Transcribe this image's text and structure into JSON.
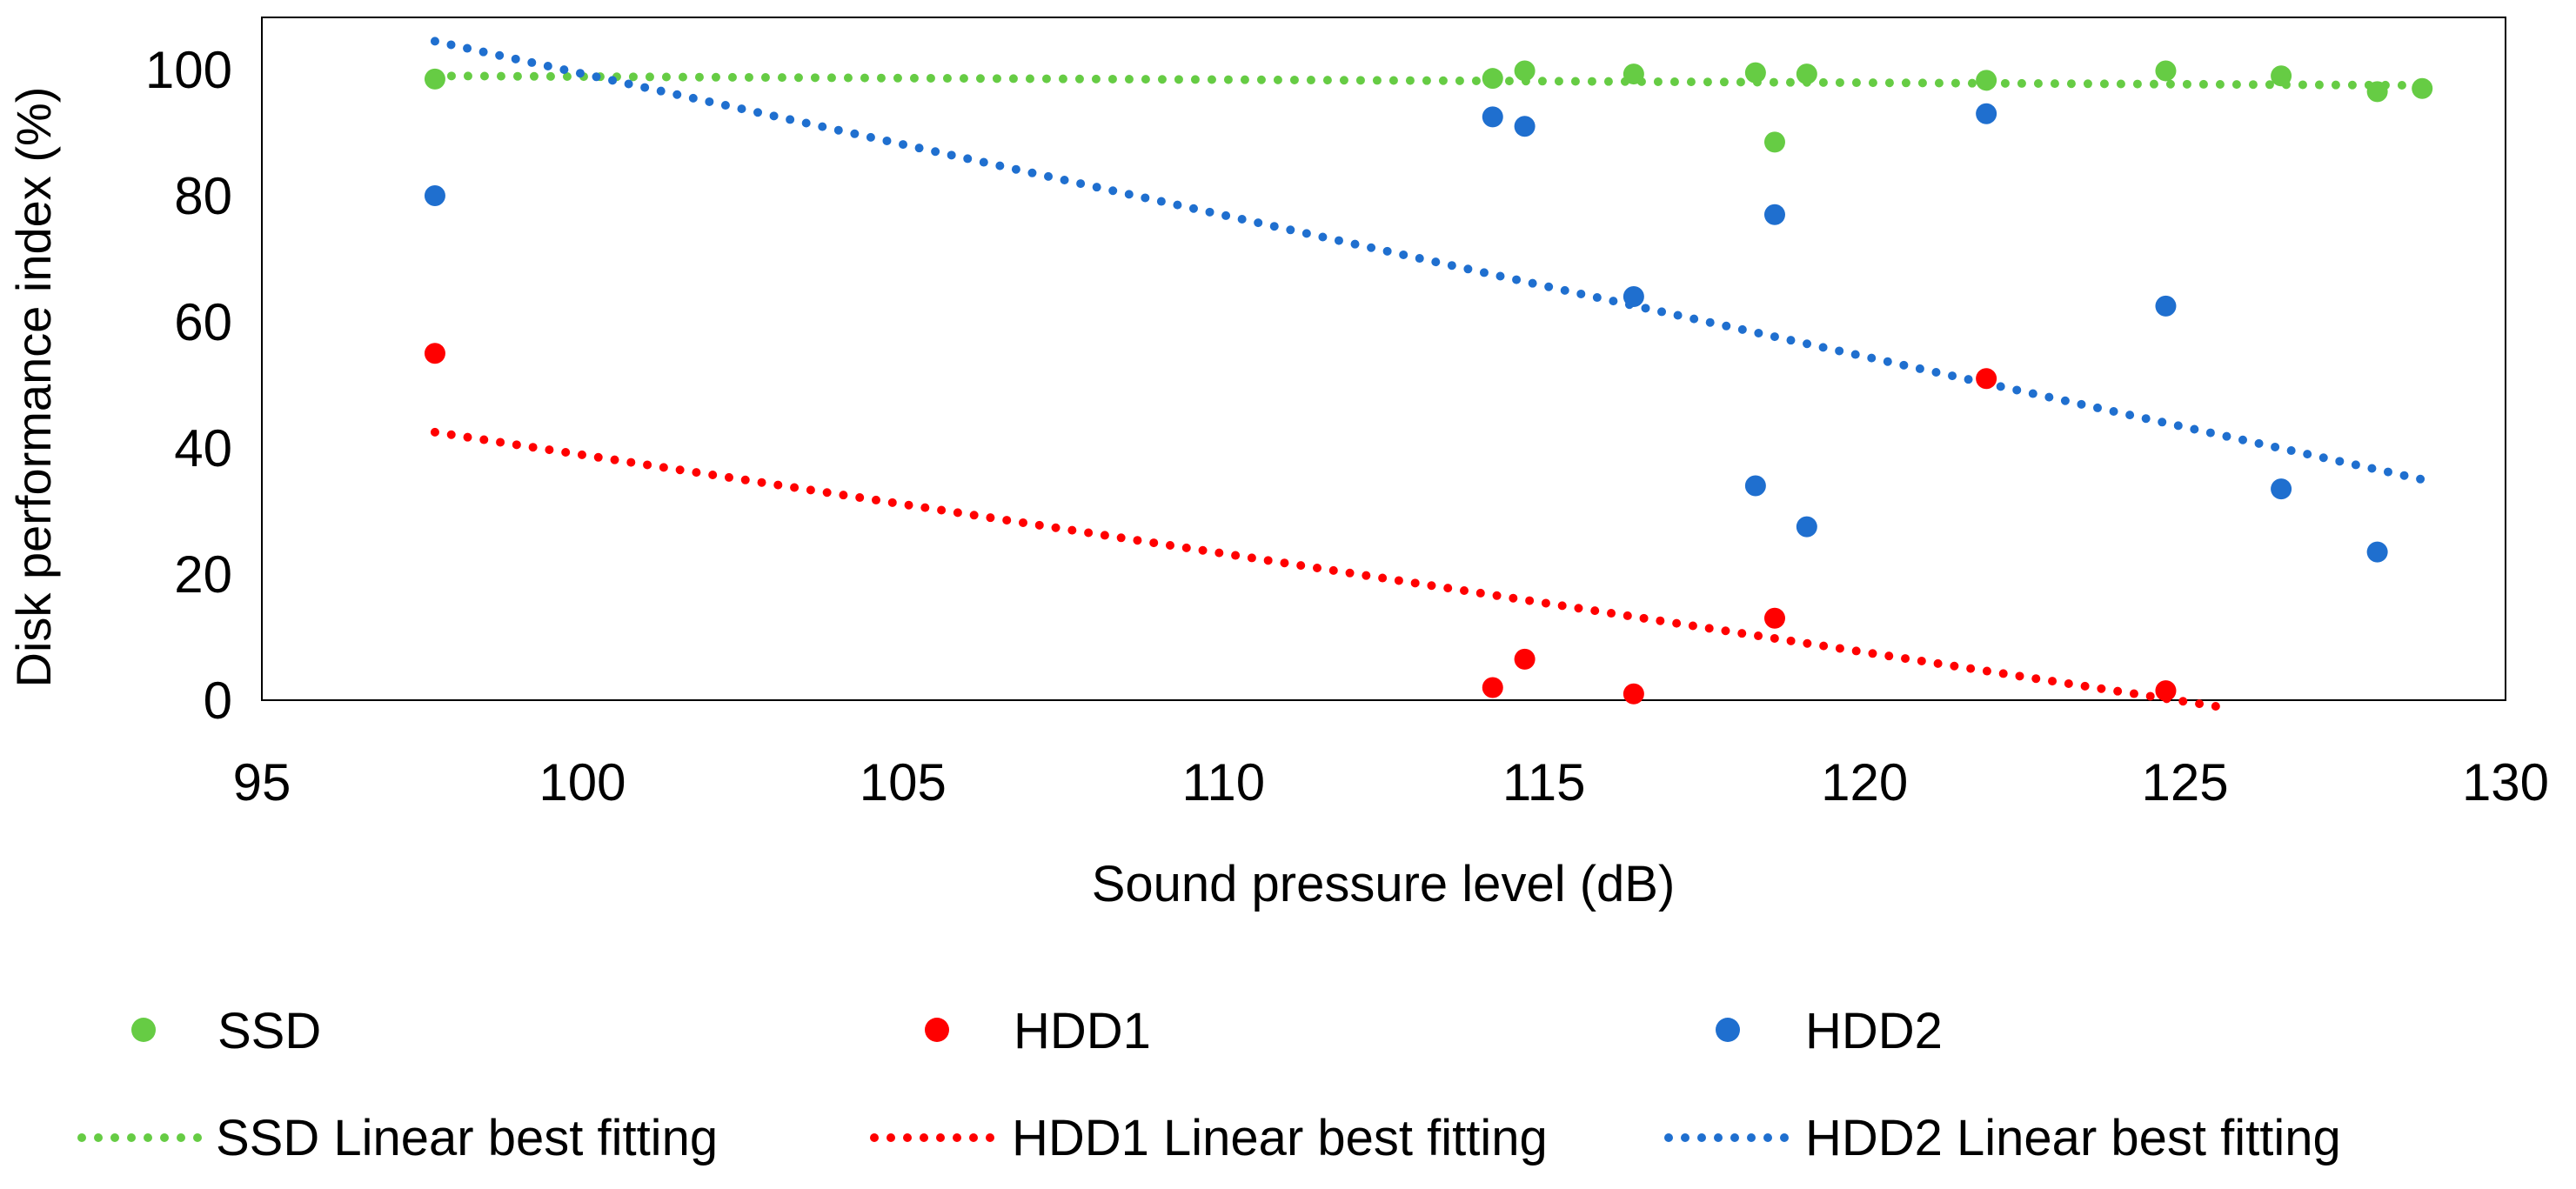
{
  "chart_data": {
    "type": "scatter",
    "title": "",
    "xlabel": "Sound pressure level (dB)",
    "ylabel": "Disk performance index (%)",
    "xlim": [
      95,
      130
    ],
    "ylim": [
      0,
      110
    ],
    "x_ticks": [
      95,
      100,
      105,
      110,
      115,
      120,
      125,
      130
    ],
    "y_ticks": [
      0,
      20,
      40,
      60,
      80,
      100
    ],
    "grid": false,
    "legend_position": "bottom",
    "series": [
      {
        "name": "SSD",
        "color": "#66cc44",
        "points": [
          {
            "x": 97.7,
            "y": 98.5
          },
          {
            "x": 114.2,
            "y": 98.6
          },
          {
            "x": 114.7,
            "y": 99.8
          },
          {
            "x": 116.4,
            "y": 99.3
          },
          {
            "x": 118.3,
            "y": 99.5
          },
          {
            "x": 118.6,
            "y": 88.5
          },
          {
            "x": 119.1,
            "y": 99.3
          },
          {
            "x": 121.9,
            "y": 98.3
          },
          {
            "x": 124.7,
            "y": 99.8
          },
          {
            "x": 126.5,
            "y": 99.0
          },
          {
            "x": 128.0,
            "y": 96.5
          },
          {
            "x": 128.7,
            "y": 97.0
          }
        ]
      },
      {
        "name": "HDD1",
        "color": "#ff0000",
        "points": [
          {
            "x": 97.7,
            "y": 55.0
          },
          {
            "x": 114.2,
            "y": 2.0
          },
          {
            "x": 114.7,
            "y": 6.5
          },
          {
            "x": 116.4,
            "y": 1.0
          },
          {
            "x": 118.6,
            "y": 13.0
          },
          {
            "x": 121.9,
            "y": 51.0
          },
          {
            "x": 124.7,
            "y": 1.5
          }
        ]
      },
      {
        "name": "HDD2",
        "color": "#1f6fcf",
        "points": [
          {
            "x": 97.7,
            "y": 80.0
          },
          {
            "x": 114.2,
            "y": 92.5
          },
          {
            "x": 114.7,
            "y": 91.0
          },
          {
            "x": 116.4,
            "y": 64.0
          },
          {
            "x": 118.3,
            "y": 34.0
          },
          {
            "x": 118.6,
            "y": 77.0
          },
          {
            "x": 119.1,
            "y": 27.5
          },
          {
            "x": 121.9,
            "y": 93.0
          },
          {
            "x": 124.7,
            "y": 62.5
          },
          {
            "x": 126.5,
            "y": 33.5
          },
          {
            "x": 128.0,
            "y": 23.5
          }
        ]
      }
    ],
    "trendlines": [
      {
        "name": "SSD Linear best fitting",
        "color": "#66cc44",
        "x1": 97.7,
        "y1": 99.0,
        "x2": 128.7,
        "y2": 97.5
      },
      {
        "name": "HDD1 Linear best fitting",
        "color": "#ff0000",
        "x1": 97.7,
        "y1": 42.5,
        "x2": 125.5,
        "y2": -1.0
      },
      {
        "name": "HDD2 Linear best fitting",
        "color": "#1f6fcf",
        "x1": 97.7,
        "y1": 104.5,
        "x2": 128.7,
        "y2": 35.0
      }
    ]
  }
}
